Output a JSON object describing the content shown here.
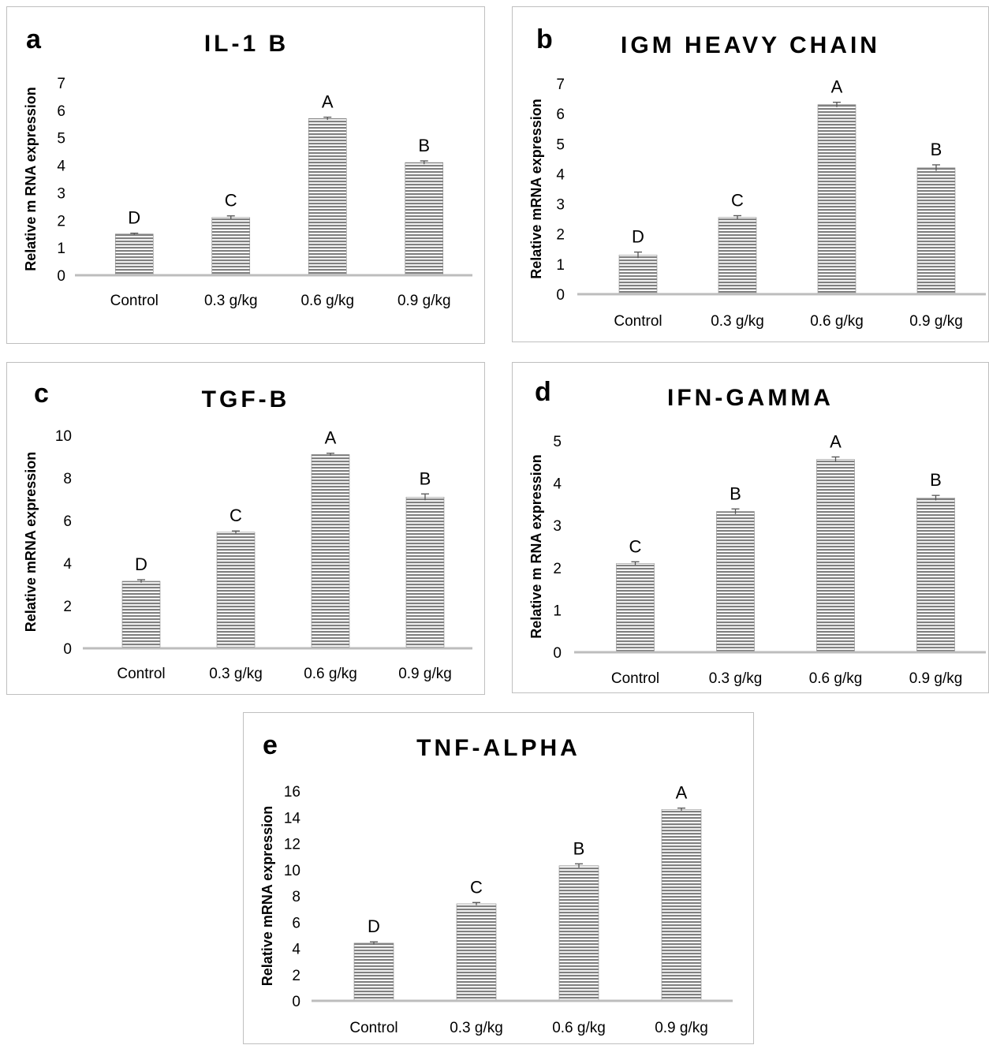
{
  "chart_data": [
    {
      "type": "bar",
      "panel_label": "a",
      "title": "IL-1 B",
      "ylabel": "Relative m RNA expression",
      "xlabel": "",
      "categories": [
        "Control",
        "0.3 g/kg",
        "0.6 g/kg",
        "0.9 g/kg"
      ],
      "values": [
        1.5,
        2.1,
        5.7,
        4.1
      ],
      "errors": [
        0.03,
        0.06,
        0.05,
        0.06
      ],
      "letters": [
        "D",
        "C",
        "A",
        "B"
      ],
      "ylim": [
        0,
        7
      ],
      "yticks": [
        "0",
        "1",
        "2",
        "3",
        "4",
        "5",
        "6",
        "7"
      ],
      "grid": false,
      "bar_color": "#808080"
    },
    {
      "type": "bar",
      "panel_label": "b",
      "title": "IGM HEAVY CHAIN",
      "ylabel": "Relative mRNA expression",
      "xlabel": "",
      "categories": [
        "Control",
        "0.3 g/kg",
        "0.6 g/kg",
        "0.9 g/kg"
      ],
      "values": [
        1.3,
        2.55,
        6.3,
        4.2
      ],
      "errors": [
        0.1,
        0.06,
        0.08,
        0.1
      ],
      "letters": [
        "D",
        "C",
        "A",
        "B"
      ],
      "ylim": [
        0,
        7
      ],
      "yticks": [
        "0",
        "1",
        "2",
        "3",
        "4",
        "5",
        "6",
        "7"
      ],
      "grid": false,
      "bar_color": "#808080"
    },
    {
      "type": "bar",
      "panel_label": "c",
      "title": "TGF-B",
      "ylabel": "Relative mRNA expression",
      "xlabel": "",
      "categories": [
        "Control",
        "0.3 g/kg",
        "0.6 g/kg",
        "0.9 g/kg"
      ],
      "values": [
        3.15,
        5.45,
        9.1,
        7.1
      ],
      "errors": [
        0.07,
        0.06,
        0.06,
        0.15
      ],
      "letters": [
        "D",
        "C",
        "A",
        "B"
      ],
      "ylim": [
        0,
        10
      ],
      "yticks": [
        "0",
        "2",
        "4",
        "6",
        "8",
        "10"
      ],
      "grid": false,
      "bar_color": "#808080"
    },
    {
      "type": "bar",
      "panel_label": "d",
      "title": "IFN-GAMMA",
      "ylabel": "Relative m RNA expression",
      "xlabel": "",
      "categories": [
        "Control",
        "0.3 g/kg",
        "0.6 g/kg",
        "0.9 g/kg"
      ],
      "values": [
        2.1,
        3.33,
        4.56,
        3.65
      ],
      "errors": [
        0.04,
        0.06,
        0.06,
        0.06
      ],
      "letters": [
        "C",
        "B",
        "A",
        "B"
      ],
      "ylim": [
        0,
        5
      ],
      "yticks": [
        "0",
        "1",
        "2",
        "3",
        "4",
        "5"
      ],
      "grid": false,
      "bar_color": "#808080"
    },
    {
      "type": "bar",
      "panel_label": "e",
      "title": "TNF-ALPHA",
      "ylabel": "Relative mRNA expression",
      "xlabel": "",
      "categories": [
        "Control",
        "0.3 g/kg",
        "0.6 g/kg",
        "0.9 g/kg"
      ],
      "values": [
        4.4,
        7.4,
        10.3,
        14.6
      ],
      "errors": [
        0.1,
        0.1,
        0.15,
        0.1
      ],
      "letters": [
        "D",
        "C",
        "B",
        "A"
      ],
      "ylim": [
        0,
        16
      ],
      "yticks": [
        "0",
        "2",
        "4",
        "6",
        "8",
        "10",
        "12",
        "14",
        "16"
      ],
      "grid": false,
      "bar_color": "#808080"
    }
  ]
}
